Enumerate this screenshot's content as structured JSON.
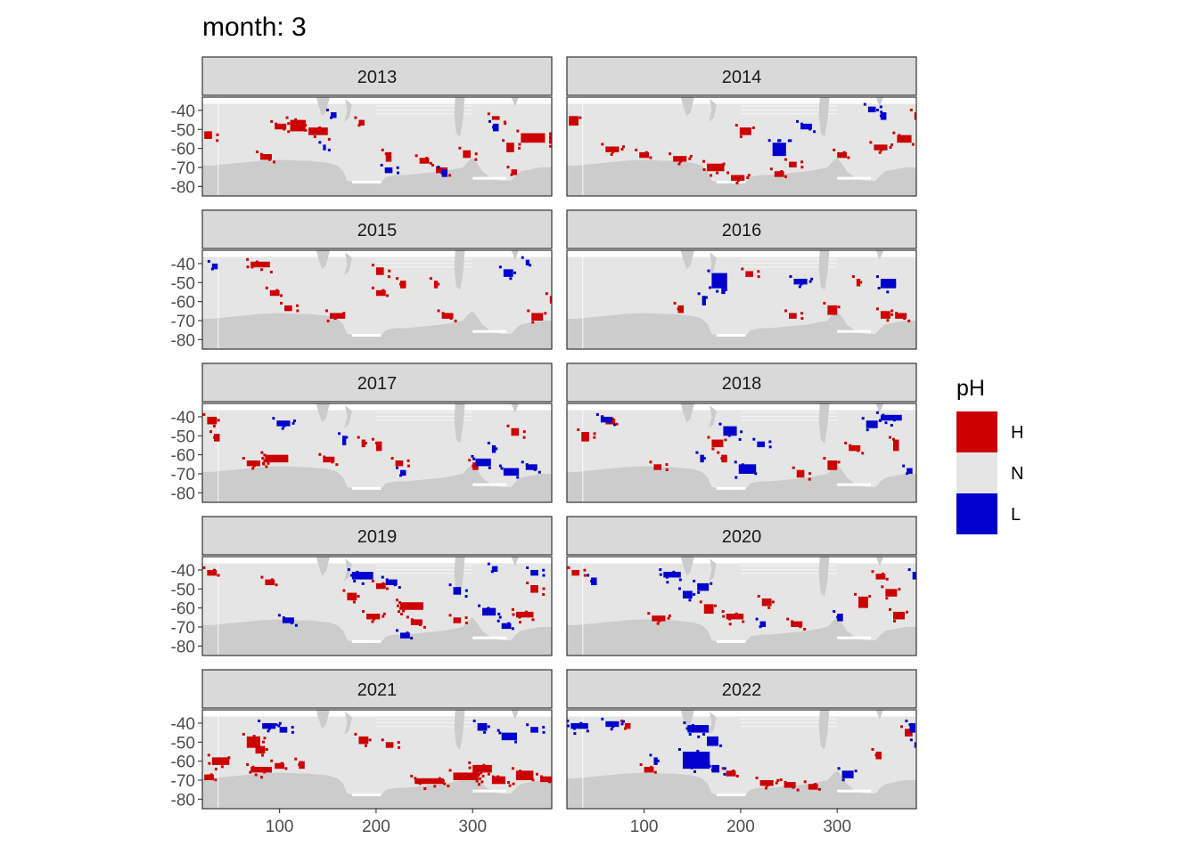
{
  "chart_data": {
    "type": "heatmap",
    "title": "month: 3",
    "facet_labels": [
      "2013",
      "2014",
      "2015",
      "2016",
      "2017",
      "2018",
      "2019",
      "2020",
      "2021",
      "2022"
    ],
    "xlim": [
      20,
      382
    ],
    "ylim": [
      -85,
      -33
    ],
    "x_ticks": [
      100,
      200,
      300
    ],
    "x_tick_labels": [
      "100",
      "200",
      "300"
    ],
    "y_ticks": [
      -40,
      -50,
      -60,
      -70,
      -80
    ],
    "y_tick_labels": [
      "-40",
      "-50",
      "-60",
      "-70",
      "-80"
    ],
    "grid": false,
    "legend": {
      "title": "pH",
      "position": "right",
      "entries": [
        {
          "label": "H",
          "color": "#cc0000"
        },
        {
          "label": "N",
          "color": "#e5e5e5"
        },
        {
          "label": "L",
          "color": "#0000cc"
        }
      ]
    },
    "colors": {
      "land": "#cccccc",
      "strip_fill": "#d9d9d9",
      "panel_border": "#333333"
    },
    "panels": [
      {
        "facet": "2013",
        "H": [
          [
            111,
            -45,
            16,
            6
          ],
          [
            95,
            -47,
            12,
            3
          ],
          [
            130,
            -49,
            20,
            4
          ],
          [
            182,
            -45,
            6,
            3
          ],
          [
            210,
            -62,
            6,
            5
          ],
          [
            245,
            -65,
            10,
            3
          ],
          [
            290,
            -61,
            8,
            4
          ],
          [
            320,
            -43,
            8,
            2
          ],
          [
            335,
            -57,
            8,
            5
          ],
          [
            350,
            -52,
            25,
            5
          ],
          [
            80,
            -63,
            12,
            3
          ],
          [
            262,
            -70,
            12,
            3
          ],
          [
            22,
            -51,
            8,
            4
          ],
          [
            340,
            -71,
            6,
            3
          ]
        ],
        "L": [
          [
            153,
            -41,
            6,
            3
          ],
          [
            209,
            -70,
            8,
            3
          ],
          [
            268,
            -71,
            6,
            4
          ],
          [
            321,
            -47,
            6,
            4
          ],
          [
            145,
            -58,
            3,
            3
          ]
        ]
      },
      {
        "facet": "2014",
        "H": [
          [
            22,
            -43,
            10,
            5
          ],
          [
            60,
            -59,
            14,
            3
          ],
          [
            95,
            -62,
            10,
            3
          ],
          [
            130,
            -64,
            14,
            3
          ],
          [
            199,
            -49,
            12,
            4
          ],
          [
            250,
            -67,
            8,
            3
          ],
          [
            165,
            -68,
            18,
            4
          ],
          [
            190,
            -74,
            14,
            3
          ],
          [
            338,
            -58,
            14,
            3
          ],
          [
            362,
            -53,
            15,
            4
          ],
          [
            300,
            -62,
            10,
            3
          ],
          [
            235,
            -72,
            10,
            3
          ],
          [
            380,
            -41,
            4,
            4
          ]
        ],
        "L": [
          [
            233,
            -57,
            14,
            7
          ],
          [
            262,
            -47,
            12,
            3
          ],
          [
            345,
            -41,
            6,
            4
          ],
          [
            332,
            -38,
            8,
            3
          ]
        ]
      },
      {
        "facet": "2015",
        "H": [
          [
            70,
            -39,
            20,
            3
          ],
          [
            105,
            -62,
            8,
            3
          ],
          [
            152,
            -66,
            16,
            3
          ],
          [
            200,
            -42,
            8,
            4
          ],
          [
            225,
            -49,
            6,
            4
          ],
          [
            200,
            -54,
            10,
            3
          ],
          [
            268,
            -66,
            12,
            3
          ],
          [
            361,
            -66,
            12,
            4
          ],
          [
            90,
            -54,
            10,
            3
          ],
          [
            380,
            -57,
            5,
            4
          ],
          [
            260,
            -49,
            4,
            4
          ]
        ],
        "L": [
          [
            332,
            -43,
            10,
            4
          ],
          [
            30,
            -40,
            6,
            3
          ],
          [
            355,
            -38,
            4,
            3
          ]
        ]
      },
      {
        "facet": "2016",
        "H": [
          [
            135,
            -62,
            6,
            4
          ],
          [
            205,
            -44,
            8,
            3
          ],
          [
            290,
            -62,
            10,
            5
          ],
          [
            345,
            -65,
            10,
            4
          ],
          [
            360,
            -66,
            12,
            3
          ],
          [
            320,
            -48,
            4,
            4
          ],
          [
            250,
            -66,
            8,
            3
          ]
        ],
        "L": [
          [
            170,
            -45,
            16,
            8
          ],
          [
            255,
            -48,
            14,
            3
          ],
          [
            345,
            -48,
            16,
            5
          ],
          [
            180,
            -52,
            4,
            4
          ],
          [
            160,
            -57,
            4,
            5
          ]
        ]
      },
      {
        "facet": "2017",
        "H": [
          [
            85,
            -60,
            24,
            4
          ],
          [
            66,
            -63,
            14,
            3
          ],
          [
            145,
            -61,
            12,
            3
          ],
          [
            220,
            -63,
            8,
            3
          ],
          [
            200,
            -53,
            6,
            5
          ],
          [
            25,
            -40,
            10,
            4
          ],
          [
            32,
            -49,
            6,
            4
          ],
          [
            340,
            -46,
            8,
            4
          ],
          [
            300,
            -64,
            6,
            4
          ],
          [
            185,
            -52,
            4,
            4
          ]
        ],
        "L": [
          [
            97,
            -42,
            14,
            3
          ],
          [
            303,
            -62,
            16,
            4
          ],
          [
            332,
            -67,
            16,
            4
          ],
          [
            355,
            -65,
            12,
            3
          ],
          [
            225,
            -68,
            6,
            3
          ],
          [
            165,
            -50,
            4,
            5
          ],
          [
            320,
            -55,
            4,
            4
          ]
        ],
        "extra_shades": []
      },
      {
        "facet": "2018",
        "H": [
          [
            35,
            -48,
            8,
            5
          ],
          [
            170,
            -52,
            12,
            4
          ],
          [
            180,
            -60,
            6,
            4
          ],
          [
            290,
            -63,
            10,
            5
          ],
          [
            312,
            -55,
            12,
            3
          ],
          [
            358,
            -52,
            6,
            6
          ],
          [
            110,
            -65,
            8,
            3
          ],
          [
            258,
            -68,
            8,
            4
          ],
          [
            60,
            -41,
            10,
            3
          ]
        ],
        "L": [
          [
            55,
            -40,
            12,
            3
          ],
          [
            182,
            -45,
            14,
            5
          ],
          [
            198,
            -65,
            18,
            5
          ],
          [
            330,
            -42,
            12,
            4
          ],
          [
            345,
            -39,
            22,
            3
          ],
          [
            372,
            -67,
            6,
            3
          ],
          [
            217,
            -53,
            8,
            3
          ],
          [
            158,
            -60,
            4,
            4
          ]
        ]
      },
      {
        "facet": "2019",
        "H": [
          [
            200,
            -47,
            10,
            3
          ],
          [
            225,
            -57,
            24,
            4
          ],
          [
            236,
            -66,
            12,
            3
          ],
          [
            190,
            -63,
            14,
            3
          ],
          [
            280,
            -65,
            8,
            3
          ],
          [
            345,
            -62,
            18,
            3
          ],
          [
            170,
            -52,
            10,
            4
          ],
          [
            25,
            -40,
            10,
            3
          ],
          [
            85,
            -45,
            10,
            3
          ],
          [
            360,
            -48,
            8,
            4
          ]
        ],
        "L": [
          [
            175,
            -41,
            22,
            4
          ],
          [
            210,
            -45,
            12,
            3
          ],
          [
            280,
            -49,
            8,
            4
          ],
          [
            310,
            -60,
            14,
            4
          ],
          [
            330,
            -68,
            10,
            3
          ],
          [
            103,
            -65,
            12,
            3
          ],
          [
            225,
            -73,
            10,
            3
          ],
          [
            360,
            -40,
            8,
            3
          ],
          [
            320,
            -38,
            6,
            3
          ]
        ],
        "extra_shades": []
      },
      {
        "facet": "2020",
        "H": [
          [
            162,
            -58,
            10,
            5
          ],
          [
            108,
            -64,
            14,
            3
          ],
          [
            185,
            -63,
            18,
            3
          ],
          [
            222,
            -55,
            10,
            4
          ],
          [
            252,
            -67,
            12,
            3
          ],
          [
            322,
            -54,
            10,
            6
          ],
          [
            350,
            -50,
            12,
            4
          ],
          [
            358,
            -62,
            12,
            4
          ],
          [
            340,
            -42,
            10,
            3
          ],
          [
            25,
            -40,
            8,
            3
          ]
        ],
        "L": [
          [
            120,
            -41,
            18,
            3
          ],
          [
            140,
            -51,
            10,
            4
          ],
          [
            155,
            -47,
            12,
            4
          ],
          [
            220,
            -67,
            6,
            3
          ],
          [
            300,
            -63,
            6,
            4
          ],
          [
            378,
            -41,
            4,
            4
          ],
          [
            45,
            -44,
            6,
            4
          ]
        ]
      },
      {
        "facet": "2021",
        "H": [
          [
            66,
            -47,
            14,
            6
          ],
          [
            75,
            -52,
            10,
            4
          ],
          [
            30,
            -58,
            18,
            4
          ],
          [
            70,
            -63,
            22,
            3
          ],
          [
            95,
            -61,
            10,
            3
          ],
          [
            182,
            -47,
            10,
            4
          ],
          [
            240,
            -69,
            30,
            3
          ],
          [
            280,
            -66,
            26,
            4
          ],
          [
            300,
            -62,
            20,
            4
          ],
          [
            320,
            -68,
            14,
            4
          ],
          [
            345,
            -65,
            18,
            5
          ],
          [
            370,
            -68,
            12,
            3
          ],
          [
            22,
            -67,
            10,
            3
          ],
          [
            120,
            -60,
            6,
            4
          ],
          [
            210,
            -50,
            8,
            3
          ]
        ],
        "L": [
          [
            82,
            -40,
            14,
            3
          ],
          [
            100,
            -42,
            8,
            3
          ],
          [
            305,
            -40,
            10,
            4
          ],
          [
            330,
            -45,
            16,
            4
          ],
          [
            360,
            -42,
            8,
            3
          ]
        ]
      },
      {
        "facet": "2022",
        "H": [
          [
            100,
            -63,
            10,
            3
          ],
          [
            185,
            -65,
            10,
            3
          ],
          [
            220,
            -70,
            14,
            3
          ],
          [
            245,
            -71,
            12,
            3
          ],
          [
            270,
            -72,
            10,
            3
          ],
          [
            370,
            -43,
            8,
            4
          ],
          [
            340,
            -55,
            6,
            4
          ],
          [
            80,
            -40,
            6,
            3
          ]
        ],
        "L": [
          [
            24,
            -40,
            18,
            3
          ],
          [
            60,
            -39,
            14,
            3
          ],
          [
            145,
            -41,
            22,
            4
          ],
          [
            140,
            -55,
            28,
            9
          ],
          [
            165,
            -47,
            12,
            5
          ],
          [
            170,
            -62,
            8,
            4
          ],
          [
            305,
            -65,
            12,
            4
          ],
          [
            375,
            -40,
            6,
            5
          ],
          [
            380,
            -50,
            4,
            3
          ],
          [
            110,
            -58,
            4,
            4
          ]
        ]
      }
    ]
  }
}
